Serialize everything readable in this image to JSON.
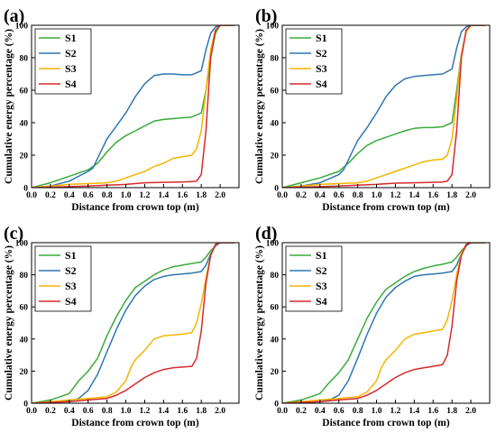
{
  "chart_data": [
    {
      "panel": "(a)",
      "type": "line",
      "xlabel": "Distance from crown top (m)",
      "ylabel": "Cumulative energy percentage (%)",
      "xlim": [
        0,
        2.2
      ],
      "ylim": [
        0,
        100
      ],
      "xticks": [
        "0.0",
        "0.2",
        "0.4",
        "0.6",
        "0.8",
        "1.0",
        "1.2",
        "1.4",
        "1.6",
        "1.8",
        "2.0"
      ],
      "yticks": [
        "0",
        "20",
        "40",
        "60",
        "80",
        "100"
      ],
      "legend": "top-left",
      "series": [
        {
          "name": "S1",
          "color": "#3aaa3a",
          "x": [
            0,
            0.2,
            0.4,
            0.6,
            0.7,
            0.8,
            0.9,
            1.0,
            1.1,
            1.2,
            1.3,
            1.4,
            1.5,
            1.6,
            1.7,
            1.8,
            1.85,
            1.9,
            1.95,
            2.0,
            2.05,
            2.15
          ],
          "y": [
            0,
            3,
            7,
            11,
            15,
            22,
            28,
            32,
            35,
            38,
            41,
            42,
            42.5,
            43,
            43.5,
            46,
            60,
            80,
            95,
            100,
            100,
            100
          ]
        },
        {
          "name": "S2",
          "color": "#2e76b0",
          "x": [
            0,
            0.2,
            0.4,
            0.6,
            0.65,
            0.7,
            0.75,
            0.8,
            0.9,
            1.0,
            1.1,
            1.2,
            1.3,
            1.4,
            1.5,
            1.6,
            1.7,
            1.8,
            1.85,
            1.9,
            1.95,
            2.0,
            2.05,
            2.15
          ],
          "y": [
            0,
            1,
            4,
            10,
            12,
            18,
            24,
            30,
            38,
            46,
            56,
            64,
            69,
            70,
            70,
            69.5,
            69.5,
            72,
            85,
            95,
            99,
            100,
            100,
            100
          ]
        },
        {
          "name": "S3",
          "color": "#f5b400",
          "x": [
            0,
            0.2,
            0.4,
            0.6,
            0.8,
            0.9,
            1.0,
            1.1,
            1.2,
            1.3,
            1.4,
            1.5,
            1.6,
            1.7,
            1.75,
            1.8,
            1.85,
            1.9,
            1.95,
            2.0,
            2.05,
            2.15
          ],
          "y": [
            0,
            1,
            2,
            2.5,
            3,
            4,
            6,
            8,
            10,
            13,
            15,
            18,
            19,
            20,
            24,
            35,
            60,
            85,
            97,
            100,
            100,
            100
          ]
        },
        {
          "name": "S4",
          "color": "#d62a2a",
          "x": [
            0,
            0.2,
            0.4,
            0.6,
            0.8,
            1.0,
            1.2,
            1.4,
            1.6,
            1.7,
            1.75,
            1.8,
            1.85,
            1.9,
            1.95,
            2.0,
            2.05,
            2.15
          ],
          "y": [
            0,
            0.3,
            0.6,
            1,
            1.5,
            2,
            3,
            3.3,
            3.5,
            3.7,
            4,
            8,
            35,
            80,
            97,
            100,
            100,
            100
          ]
        }
      ]
    },
    {
      "panel": "(b)",
      "type": "line",
      "xlabel": "Distance from crown top (m)",
      "ylabel": "Cumulative energy percentage (%)",
      "xlim": [
        0,
        2.2
      ],
      "ylim": [
        0,
        100
      ],
      "xticks": [
        "0.0",
        "0.2",
        "0.4",
        "0.6",
        "0.8",
        "1.0",
        "1.2",
        "1.4",
        "1.6",
        "1.8",
        "2.0"
      ],
      "yticks": [
        "0",
        "20",
        "40",
        "60",
        "80",
        "100"
      ],
      "legend": "top-left",
      "series": [
        {
          "name": "S1",
          "color": "#3aaa3a",
          "x": [
            0,
            0.2,
            0.4,
            0.6,
            0.7,
            0.8,
            0.9,
            1.0,
            1.1,
            1.2,
            1.3,
            1.4,
            1.5,
            1.6,
            1.7,
            1.8,
            1.85,
            1.9,
            1.95,
            2.0,
            2.05,
            2.15
          ],
          "y": [
            0,
            3,
            6,
            10,
            15,
            21,
            26,
            29,
            31,
            33,
            35,
            36.5,
            37,
            37,
            37.5,
            40,
            60,
            82,
            96,
            100,
            100,
            100
          ]
        },
        {
          "name": "S2",
          "color": "#2e76b0",
          "x": [
            0,
            0.2,
            0.4,
            0.6,
            0.65,
            0.7,
            0.75,
            0.8,
            0.9,
            1.0,
            1.1,
            1.2,
            1.3,
            1.4,
            1.5,
            1.6,
            1.7,
            1.8,
            1.85,
            1.9,
            1.95,
            2.0,
            2.05,
            2.15
          ],
          "y": [
            0,
            1,
            3,
            8,
            11,
            17,
            23,
            29,
            37,
            46,
            56,
            63,
            67,
            68.5,
            69,
            69.5,
            70,
            73,
            86,
            96,
            99,
            100,
            100,
            100
          ]
        },
        {
          "name": "S3",
          "color": "#f5b400",
          "x": [
            0,
            0.2,
            0.4,
            0.6,
            0.8,
            0.9,
            1.0,
            1.1,
            1.2,
            1.3,
            1.4,
            1.5,
            1.6,
            1.7,
            1.75,
            1.8,
            1.85,
            1.9,
            1.95,
            2.0,
            2.05,
            2.15
          ],
          "y": [
            0,
            1,
            2,
            2.5,
            3,
            4,
            6,
            8,
            10,
            12,
            14,
            16,
            17,
            17.5,
            20,
            30,
            55,
            82,
            96,
            100,
            100,
            100
          ]
        },
        {
          "name": "S4",
          "color": "#d62a2a",
          "x": [
            0,
            0.2,
            0.4,
            0.6,
            0.8,
            1.0,
            1.2,
            1.4,
            1.6,
            1.7,
            1.75,
            1.8,
            1.85,
            1.9,
            1.95,
            2.0,
            2.05,
            2.15
          ],
          "y": [
            0,
            0.3,
            0.6,
            1,
            1.5,
            2,
            2.8,
            3,
            3.3,
            3.5,
            4,
            8,
            35,
            80,
            97,
            100,
            100,
            100
          ]
        }
      ]
    },
    {
      "panel": "(c)",
      "type": "line",
      "xlabel": "Distance from crown top (m)",
      "ylabel": "Cumulative energy percentage (%)",
      "xlim": [
        0,
        2.2
      ],
      "ylim": [
        0,
        100
      ],
      "xticks": [
        "0.0",
        "0.2",
        "0.4",
        "0.6",
        "0.8",
        "1.0",
        "1.2",
        "1.4",
        "1.6",
        "1.8",
        "2.0"
      ],
      "yticks": [
        "0",
        "20",
        "40",
        "60",
        "80",
        "100"
      ],
      "legend": "top-left",
      "series": [
        {
          "name": "S1",
          "color": "#3aaa3a",
          "x": [
            0,
            0.2,
            0.4,
            0.5,
            0.6,
            0.7,
            0.8,
            0.9,
            1.0,
            1.1,
            1.2,
            1.3,
            1.4,
            1.5,
            1.6,
            1.7,
            1.8,
            1.85,
            1.9,
            1.95,
            2.0,
            2.05,
            2.15
          ],
          "y": [
            0,
            2,
            6,
            14,
            20,
            28,
            42,
            54,
            64,
            72,
            76,
            80,
            83,
            85,
            86,
            87,
            88,
            91,
            95,
            98,
            100,
            100,
            100
          ]
        },
        {
          "name": "S2",
          "color": "#2e76b0",
          "x": [
            0,
            0.2,
            0.4,
            0.5,
            0.6,
            0.7,
            0.8,
            0.9,
            1.0,
            1.1,
            1.2,
            1.3,
            1.4,
            1.5,
            1.6,
            1.7,
            1.8,
            1.85,
            1.9,
            1.95,
            2.0,
            2.05,
            2.15
          ],
          "y": [
            0,
            0.5,
            1.5,
            3,
            8,
            18,
            32,
            46,
            58,
            67,
            73,
            77,
            79,
            80,
            80.5,
            81,
            82,
            86,
            93,
            98,
            100,
            100,
            100
          ]
        },
        {
          "name": "S3",
          "color": "#f5b400",
          "x": [
            0,
            0.2,
            0.4,
            0.6,
            0.8,
            0.9,
            1.0,
            1.05,
            1.1,
            1.2,
            1.3,
            1.4,
            1.5,
            1.6,
            1.7,
            1.75,
            1.8,
            1.85,
            1.9,
            1.95,
            2.0,
            2.05,
            2.15
          ],
          "y": [
            0,
            1,
            2,
            3,
            4,
            7,
            14,
            22,
            27,
            33,
            40,
            42,
            42.5,
            43,
            44,
            50,
            62,
            78,
            92,
            99,
            100,
            100,
            100
          ]
        },
        {
          "name": "S4",
          "color": "#d62a2a",
          "x": [
            0,
            0.2,
            0.4,
            0.6,
            0.8,
            0.9,
            1.0,
            1.1,
            1.2,
            1.3,
            1.4,
            1.5,
            1.6,
            1.7,
            1.75,
            1.8,
            1.85,
            1.9,
            1.95,
            2.0,
            2.05,
            2.15
          ],
          "y": [
            0,
            0.5,
            1,
            2,
            3,
            5,
            8,
            12,
            16,
            19,
            21,
            22,
            22.5,
            23,
            28,
            45,
            75,
            92,
            99,
            100,
            100,
            100
          ]
        }
      ]
    },
    {
      "panel": "(d)",
      "type": "line",
      "xlabel": "Distance from crown top (m)",
      "ylabel": "Cumulative energy percentage (%)",
      "xlim": [
        0,
        2.2
      ],
      "ylim": [
        0,
        100
      ],
      "xticks": [
        "0.0",
        "0.2",
        "0.4",
        "0.6",
        "0.8",
        "1.0",
        "1.2",
        "1.4",
        "1.6",
        "1.8",
        "2.0"
      ],
      "yticks": [
        "0",
        "20",
        "40",
        "60",
        "80",
        "100"
      ],
      "legend": "top-left",
      "series": [
        {
          "name": "S1",
          "color": "#3aaa3a",
          "x": [
            0,
            0.2,
            0.4,
            0.5,
            0.6,
            0.7,
            0.8,
            0.9,
            1.0,
            1.1,
            1.2,
            1.3,
            1.4,
            1.5,
            1.6,
            1.7,
            1.8,
            1.85,
            1.9,
            1.95,
            2.0,
            2.05,
            2.15
          ],
          "y": [
            0,
            2,
            6,
            13,
            19,
            27,
            40,
            53,
            63,
            71,
            75,
            79,
            82,
            84,
            85.5,
            86.5,
            88,
            91,
            95,
            98,
            100,
            100,
            100
          ]
        },
        {
          "name": "S2",
          "color": "#2e76b0",
          "x": [
            0,
            0.2,
            0.4,
            0.5,
            0.6,
            0.7,
            0.8,
            0.9,
            1.0,
            1.1,
            1.2,
            1.3,
            1.4,
            1.5,
            1.6,
            1.7,
            1.8,
            1.85,
            1.9,
            1.95,
            2.0,
            2.05,
            2.15
          ],
          "y": [
            0,
            0.5,
            1,
            2,
            5,
            14,
            28,
            43,
            56,
            66,
            72,
            76,
            79,
            80,
            80.5,
            81,
            82,
            86,
            93,
            98,
            100,
            100,
            100
          ]
        },
        {
          "name": "S3",
          "color": "#f5b400",
          "x": [
            0,
            0.2,
            0.4,
            0.6,
            0.8,
            0.9,
            1.0,
            1.05,
            1.1,
            1.2,
            1.3,
            1.4,
            1.5,
            1.6,
            1.7,
            1.75,
            1.8,
            1.85,
            1.9,
            1.95,
            2.0,
            2.05,
            2.15
          ],
          "y": [
            0,
            1,
            2,
            3,
            4,
            7,
            14,
            22,
            27,
            33,
            40,
            43,
            44,
            45,
            46,
            52,
            64,
            80,
            93,
            99,
            100,
            100,
            100
          ]
        },
        {
          "name": "S4",
          "color": "#d62a2a",
          "x": [
            0,
            0.2,
            0.4,
            0.6,
            0.8,
            0.9,
            1.0,
            1.1,
            1.2,
            1.3,
            1.4,
            1.5,
            1.6,
            1.7,
            1.75,
            1.8,
            1.85,
            1.9,
            1.95,
            2.0,
            2.05,
            2.15
          ],
          "y": [
            0,
            0.5,
            1,
            2,
            3,
            5,
            8,
            12,
            16,
            19,
            21,
            22,
            23,
            24,
            30,
            48,
            76,
            92,
            99,
            100,
            100,
            100
          ]
        }
      ]
    }
  ]
}
